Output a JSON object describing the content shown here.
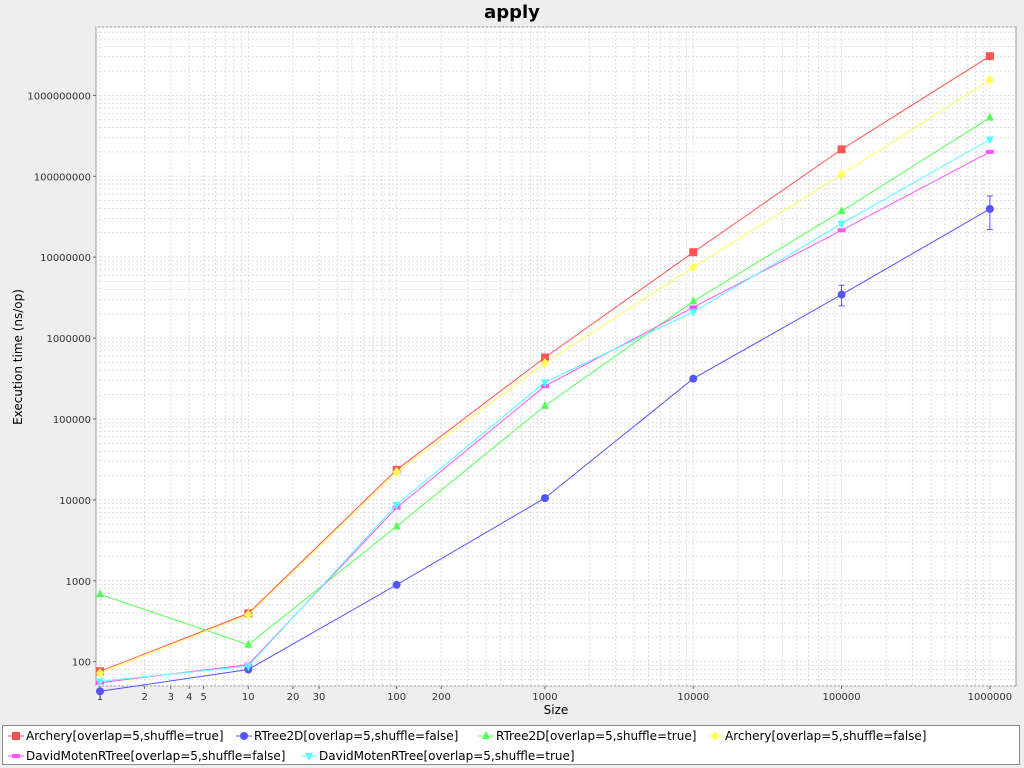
{
  "chart_data": {
    "type": "line",
    "title": "apply",
    "xlabel": "Size",
    "ylabel": "Execution time (ns/op)",
    "x_scale": "log",
    "y_scale": "log",
    "xlim": [
      0.94,
      1500000
    ],
    "ylim": [
      50,
      7000000000
    ],
    "grid": true,
    "legend_position": "bottom",
    "x_ticks": [
      1,
      2,
      3,
      4,
      5,
      10,
      20,
      30,
      100,
      200,
      1000,
      10000,
      100000,
      1000000
    ],
    "x_tick_labels": [
      "1",
      "2",
      "3",
      "4",
      "5",
      "10",
      "20",
      "30",
      "100",
      "200",
      "1000",
      "10000",
      "100000",
      "1000000"
    ],
    "y_ticks": [
      100,
      1000,
      10000,
      100000,
      1000000,
      10000000,
      100000000,
      1000000000
    ],
    "y_tick_labels": [
      "100",
      "1000",
      "10000",
      "100000",
      "1000000",
      "10000000",
      "100000000",
      "1000000000"
    ],
    "x": [
      1,
      10,
      100,
      1000,
      10000,
      100000,
      1000000
    ],
    "series": [
      {
        "name": "Archery[overlap=5,shuffle=true]",
        "color": "#ff5555",
        "marker": "square",
        "values": [
          76,
          395,
          23500,
          575000,
          11500000,
          215000000,
          3050000000
        ]
      },
      {
        "name": "RTree2D[overlap=5,shuffle=false]",
        "color": "#5555ff",
        "marker": "circle",
        "values": [
          43,
          80,
          890,
          10500,
          315000,
          3450000,
          39500000
        ],
        "error_bars": [
          null,
          null,
          null,
          null,
          null,
          [
            2500000,
            4500000
          ],
          [
            22000000,
            57000000
          ]
        ]
      },
      {
        "name": "RTree2D[overlap=5,shuffle=true]",
        "color": "#55ff55",
        "marker": "triangle-up",
        "values": [
          680,
          162,
          4700,
          145000,
          2850000,
          37000000,
          530000000
        ]
      },
      {
        "name": "Archery[overlap=5,shuffle=false]",
        "color": "#ffff55",
        "marker": "diamond",
        "values": [
          72,
          380,
          22000,
          490000,
          7500000,
          105000000,
          1550000000
        ]
      },
      {
        "name": "DavidMotenRTree[overlap=5,shuffle=false]",
        "color": "#ff55ff",
        "marker": "rect",
        "values": [
          55,
          92,
          8000,
          255000,
          2400000,
          21500000,
          200000000
        ]
      },
      {
        "name": "DavidMotenRTree[overlap=5,shuffle=true]",
        "color": "#55ffff",
        "marker": "triangle-down",
        "values": [
          57,
          88,
          8700,
          285000,
          2100000,
          26000000,
          285000000
        ]
      }
    ]
  }
}
